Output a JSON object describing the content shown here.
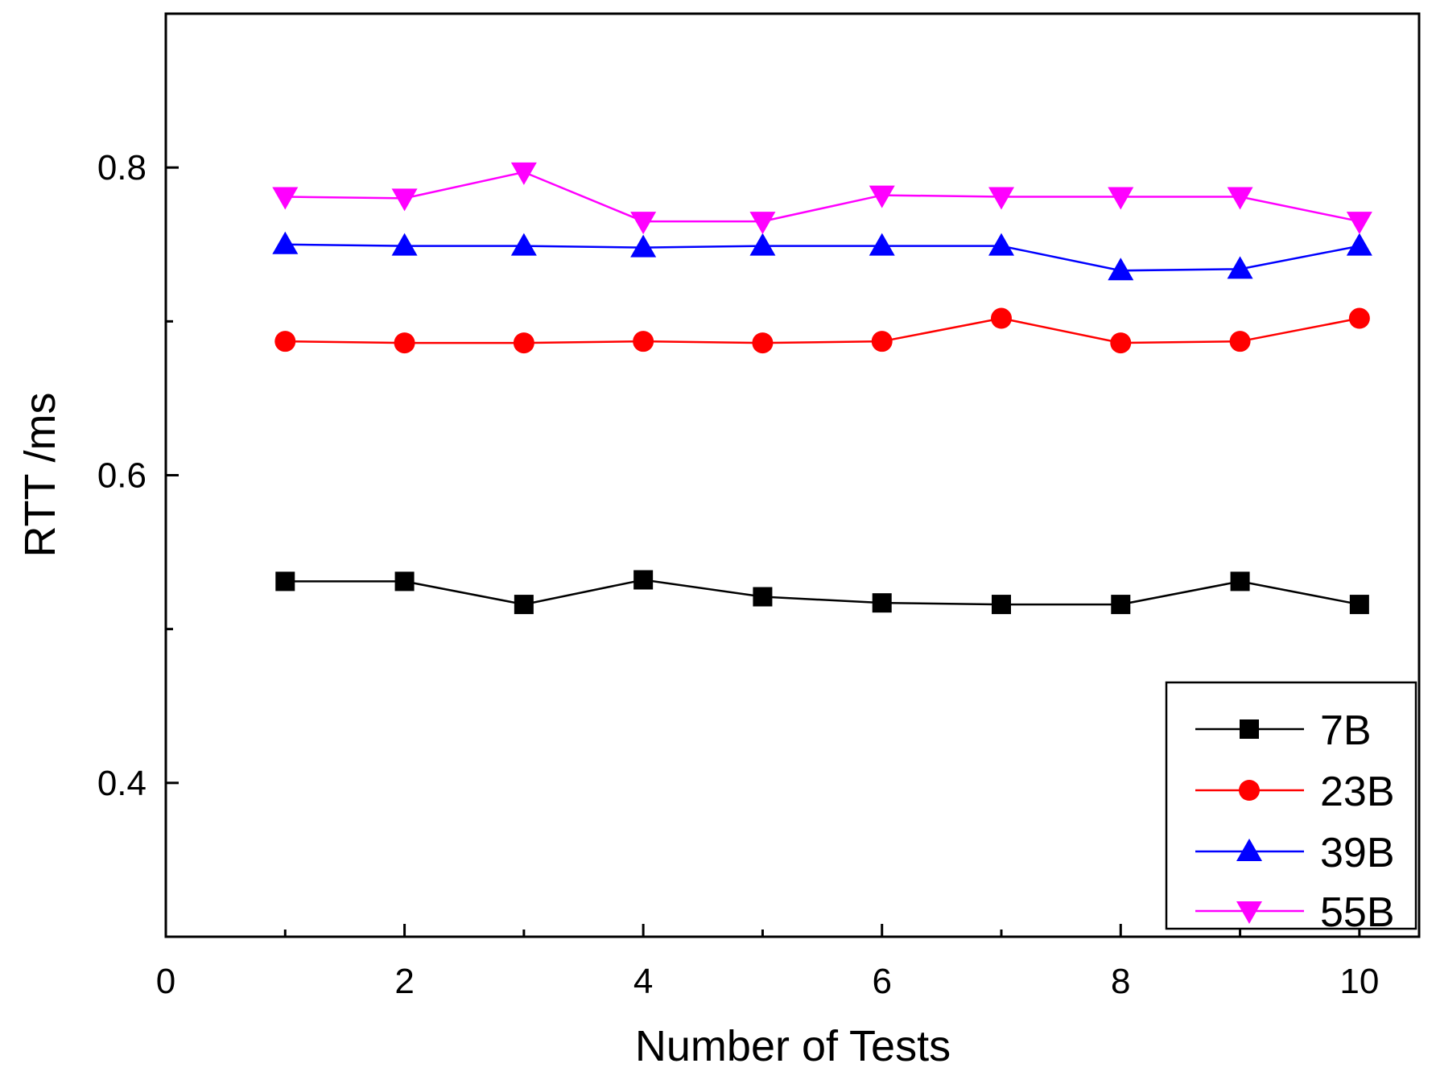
{
  "chart_data": {
    "type": "line",
    "title": "",
    "xlabel": "Number of Tests",
    "ylabel": "RTT /ms",
    "xlim": [
      0,
      10.5
    ],
    "ylim": [
      0.3,
      0.9
    ],
    "x_ticks": [
      0,
      2,
      4,
      6,
      8,
      10
    ],
    "x_tick_labels": [
      "0",
      "2",
      "4",
      "6",
      "8",
      "10"
    ],
    "x_minor_ticks": [
      1,
      3,
      5,
      7,
      9
    ],
    "y_ticks": [
      0.4,
      0.6,
      0.8
    ],
    "y_tick_labels": [
      "0.4",
      "0.6",
      "0.8"
    ],
    "y_minor_ticks": [
      0.5,
      0.7
    ],
    "grid": false,
    "legend_position": "bottom-right",
    "x": [
      1,
      2,
      3,
      4,
      5,
      6,
      7,
      8,
      9,
      10
    ],
    "series": [
      {
        "name": "7B",
        "color": "#000000",
        "marker": "square",
        "values": [
          0.531,
          0.531,
          0.516,
          0.532,
          0.521,
          0.517,
          0.516,
          0.516,
          0.531,
          0.516
        ]
      },
      {
        "name": "23B",
        "color": "#ff0000",
        "marker": "circle",
        "values": [
          0.687,
          0.686,
          0.686,
          0.687,
          0.686,
          0.687,
          0.702,
          0.686,
          0.687,
          0.702
        ]
      },
      {
        "name": "39B",
        "color": "#0000ff",
        "marker": "triangle-up",
        "values": [
          0.75,
          0.749,
          0.749,
          0.748,
          0.749,
          0.749,
          0.749,
          0.733,
          0.734,
          0.749
        ]
      },
      {
        "name": "55B",
        "color": "#ff00ff",
        "marker": "triangle-down",
        "values": [
          0.781,
          0.78,
          0.797,
          0.765,
          0.765,
          0.782,
          0.781,
          0.781,
          0.781,
          0.765
        ]
      }
    ]
  }
}
